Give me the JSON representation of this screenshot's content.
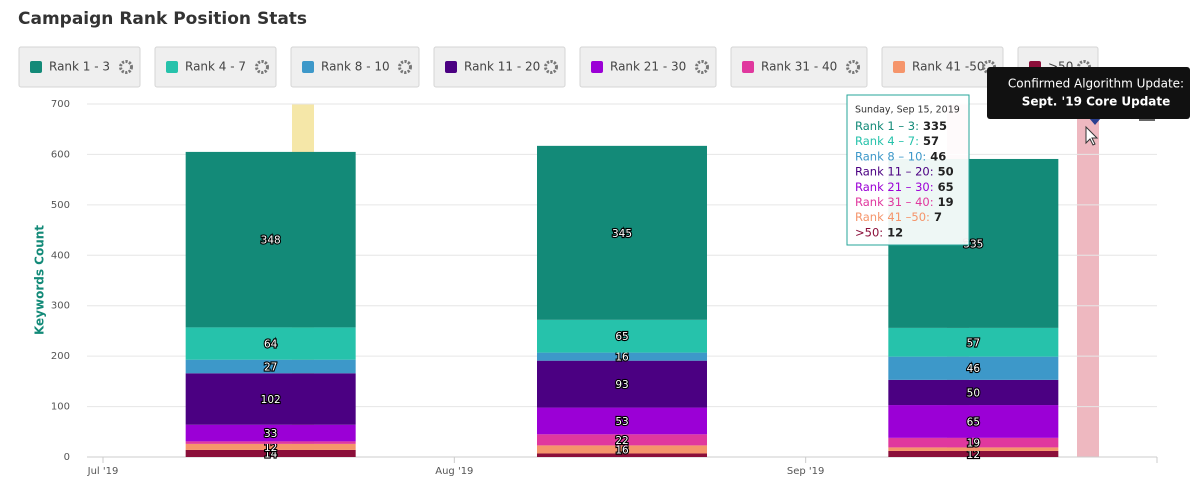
{
  "chart_data": {
    "type": "stacked-bar",
    "title": "Campaign Rank Position Stats",
    "y_label": "Keywords Count",
    "categories": [
      "Jul '19",
      "Aug '19",
      "Sep '19"
    ],
    "ylim": [
      0,
      700
    ],
    "yticks": [
      0,
      100,
      200,
      300,
      400,
      500,
      600,
      700
    ],
    "grid": true,
    "series": [
      {
        "name": "Rank 1 - 3",
        "color": "#138a78",
        "values": [
          348,
          345,
          335
        ]
      },
      {
        "name": "Rank 4 - 7",
        "color": "#26c2ab",
        "values": [
          64,
          65,
          57
        ]
      },
      {
        "name": "Rank 8 - 10",
        "color": "#3d98c9",
        "values": [
          27,
          16,
          46
        ]
      },
      {
        "name": "Rank 11 - 20",
        "color": "#4b0082",
        "values": [
          102,
          93,
          50
        ]
      },
      {
        "name": "Rank 21 - 30",
        "color": "#9b00d6",
        "values": [
          33,
          53,
          65
        ]
      },
      {
        "name": "Rank 31 - 40",
        "color": "#e0389e",
        "values": [
          5,
          22,
          19
        ]
      },
      {
        "name": "Rank 41 -50",
        "color": "#f5956b",
        "values": [
          12,
          16,
          7
        ]
      },
      {
        "name": ">50",
        "color": "#8b0f3a",
        "values": [
          14,
          7,
          12
        ]
      }
    ],
    "tooltip": {
      "title": "Sunday, Sep 15, 2019",
      "labels": [
        "Rank 1 – 3:",
        "Rank 4 – 7:",
        "Rank 8 – 10:",
        "Rank 11 – 20:",
        "Rank 21 – 30:",
        "Rank 31 – 40:",
        "Rank 41 –50:",
        ">50:"
      ]
    },
    "annotation": {
      "line1": "Confirmed Algorithm Update:",
      "line2": "Sept. '19 Core Update"
    }
  }
}
